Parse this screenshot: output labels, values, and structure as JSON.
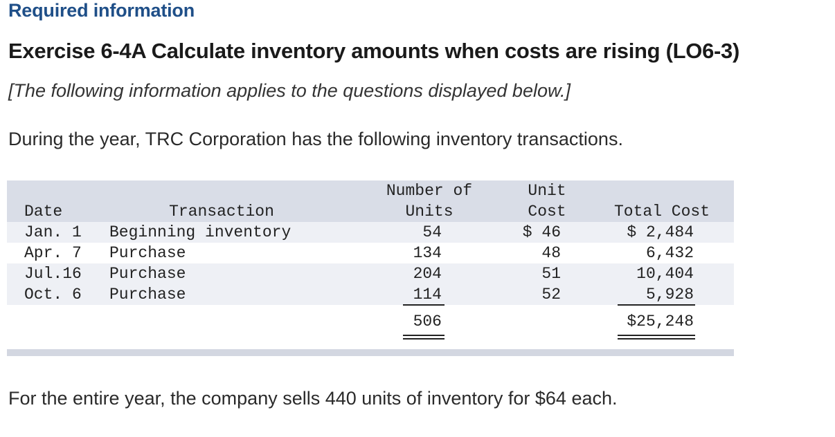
{
  "heading": "Required information",
  "exercise_title": "Exercise 6-4A Calculate inventory amounts when costs are rising (LO6-3)",
  "note": "[The following information applies to the questions displayed below.]",
  "intro": "During the year, TRC Corporation has the following inventory transactions.",
  "table": {
    "headers": {
      "date": "Date",
      "transaction": "Transaction",
      "units_line1": "Number of",
      "units_line2": "Units",
      "cost_line1": "Unit",
      "cost_line2": "Cost",
      "total": "Total Cost"
    },
    "rows": [
      {
        "date": "Jan. 1",
        "transaction": "Beginning inventory",
        "units": "54",
        "cost": "$ 46",
        "total": "$ 2,484"
      },
      {
        "date": "Apr. 7",
        "transaction": "Purchase",
        "units": "134",
        "cost": "48",
        "total": "6,432"
      },
      {
        "date": "Jul.16",
        "transaction": "Purchase",
        "units": "204",
        "cost": "51",
        "total": "10,404"
      },
      {
        "date": "Oct. 6",
        "transaction": "Purchase",
        "units": "114",
        "cost": "52",
        "total": "5,928"
      }
    ],
    "totals": {
      "units": "506",
      "total": "$25,248"
    }
  },
  "outro": "For the entire year, the company sells 440 units of inventory for $64 each."
}
